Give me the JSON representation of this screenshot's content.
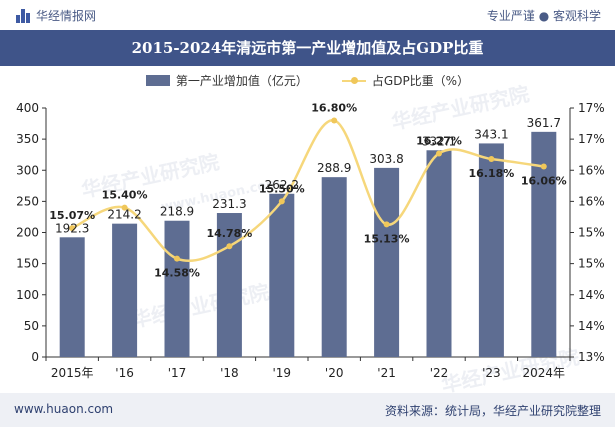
{
  "header": {
    "brand": "华经情报网",
    "tagline": "专业严谨 ● 客观科学"
  },
  "footer": {
    "website": "www.huaon.com",
    "source": "资料来源：统计局，华经产业研究院整理"
  },
  "watermark": {
    "text": "华经产业研究院",
    "url": "www.huaon.com"
  },
  "colors": {
    "bar": "#5e6d92",
    "line": "#f6d77b",
    "marker": "#f0c75a",
    "title_bg": "#3f5489"
  },
  "chart_data": {
    "type": "bar",
    "title": "2015-2024年清远市第一产业增加值及占GDP比重",
    "categories": [
      "2015年",
      "'16",
      "'17",
      "'18",
      "'19",
      "'20",
      "'21",
      "'22",
      "'23",
      "2024年"
    ],
    "series": [
      {
        "name": "第一产业增加值（亿元）",
        "type": "bar",
        "axis": "left",
        "values": [
          192.3,
          214.2,
          218.9,
          231.3,
          262.2,
          288.9,
          303.8,
          332.1,
          343.1,
          361.7
        ],
        "labels": [
          "192.3",
          "214.2",
          "218.9",
          "231.3",
          "262.2",
          "288.9",
          "303.8",
          "332.1",
          "343.1",
          "361.7"
        ]
      },
      {
        "name": "占GDP比重（%）",
        "type": "line",
        "axis": "right",
        "values": [
          15.07,
          15.4,
          14.58,
          14.78,
          15.5,
          16.8,
          15.13,
          16.27,
          16.18,
          16.06
        ],
        "labels": [
          "15.07%",
          "15.40%",
          "14.58%",
          "14.78%",
          "15.50%",
          "16.80%",
          "15.13%",
          "16.27%",
          "16.18%",
          "16.06%"
        ]
      }
    ],
    "ylim": [
      0,
      400
    ],
    "yticks": [
      "0",
      "50",
      "100",
      "150",
      "200",
      "250",
      "300",
      "350",
      "400"
    ],
    "y2lim": [
      13,
      17
    ],
    "y2ticks": [
      "13%",
      "14%",
      "14%",
      "15%",
      "15%",
      "16%",
      "16%",
      "17%",
      "17%"
    ],
    "legend_position": "top-center",
    "grid": false
  }
}
